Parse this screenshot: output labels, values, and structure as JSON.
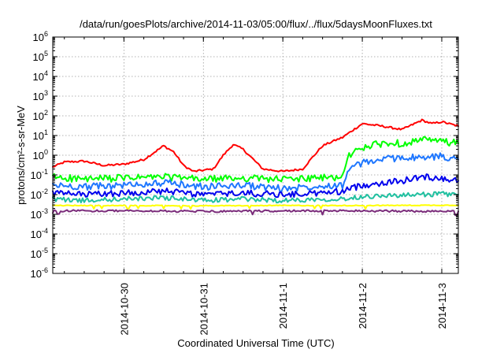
{
  "chart_data": {
    "type": "line",
    "title": "/data/run/goesPlots/archive/2014-11-03/05:00/flux/../flux/5daysMoonFluxes.txt",
    "xlabel": "Coordinated Universal Time (UTC)",
    "ylabel": "protons/cm²-s-sr-MeV",
    "yscale": "log",
    "ylim": [
      1e-06,
      1000000.0
    ],
    "y_tick_exponents": [
      -6,
      -5,
      -4,
      -3,
      -2,
      -1,
      0,
      1,
      2,
      3,
      4,
      5,
      6
    ],
    "xlim": [
      "2014-10-29 02:30",
      "2014-11-03 05:00"
    ],
    "x_ticks": [
      "2014-10-30",
      "2014-10-31",
      "2014-11-1",
      "2014-11-2",
      "2014-11-3"
    ],
    "grid": true,
    "legend": "none",
    "series": [
      {
        "color": "#ff0000",
        "x": [
          "2014-10-29 02:30",
          "2014-10-29 06:00",
          "2014-10-29 12:00",
          "2014-10-29 18:00",
          "2014-10-30 00:00",
          "2014-10-30 06:00",
          "2014-10-30 12:00",
          "2014-10-30 15:00",
          "2014-10-30 18:00",
          "2014-10-30 21:00",
          "2014-10-31 03:00",
          "2014-10-31 06:00",
          "2014-10-31 09:00",
          "2014-10-31 12:00",
          "2014-10-31 18:00",
          "2014-11-01 00:00",
          "2014-11-01 06:00",
          "2014-11-01 09:00",
          "2014-11-01 12:00",
          "2014-11-01 15:00",
          "2014-11-01 18:00",
          "2014-11-02 00:00",
          "2014-11-02 06:00",
          "2014-11-02 12:00",
          "2014-11-02 18:00",
          "2014-11-02 21:00",
          "2014-11-03 00:00",
          "2014-11-03 05:00"
        ],
        "values": [
          0.25,
          0.45,
          0.5,
          0.3,
          0.35,
          0.6,
          3.0,
          1.5,
          0.3,
          0.15,
          0.2,
          1.0,
          3.5,
          2.0,
          0.2,
          0.15,
          0.2,
          0.8,
          3.0,
          5.0,
          8.0,
          40,
          30,
          20,
          60,
          40,
          50,
          30
        ]
      },
      {
        "color": "#00ff00",
        "x": [
          "2014-10-29 02:30",
          "2014-10-29 12:00",
          "2014-10-30 00:00",
          "2014-10-30 12:00",
          "2014-10-31 00:00",
          "2014-10-31 12:00",
          "2014-11-01 00:00",
          "2014-11-01 12:00",
          "2014-11-01 18:00",
          "2014-11-01 20:00",
          "2014-11-02 00:00",
          "2014-11-02 06:00",
          "2014-11-02 12:00",
          "2014-11-02 18:00",
          "2014-11-03 00:00",
          "2014-11-03 05:00"
        ],
        "values": [
          0.08,
          0.06,
          0.07,
          0.08,
          0.06,
          0.07,
          0.06,
          0.07,
          0.08,
          1.0,
          2.5,
          4.0,
          4.0,
          6.0,
          5.0,
          4.0
        ]
      },
      {
        "color": "#1f77ff",
        "x": [
          "2014-10-29 02:30",
          "2014-10-29 12:00",
          "2014-10-30 00:00",
          "2014-10-30 12:00",
          "2014-10-31 00:00",
          "2014-10-31 12:00",
          "2014-11-01 00:00",
          "2014-11-01 12:00",
          "2014-11-01 18:00",
          "2014-11-01 20:00",
          "2014-11-02 00:00",
          "2014-11-02 06:00",
          "2014-11-02 12:00",
          "2014-11-02 18:00",
          "2014-11-03 00:00",
          "2014-11-03 05:00"
        ],
        "values": [
          0.03,
          0.025,
          0.03,
          0.04,
          0.025,
          0.03,
          0.02,
          0.03,
          0.03,
          0.2,
          0.4,
          0.6,
          0.8,
          0.7,
          0.9,
          0.6
        ]
      },
      {
        "color": "#0000ee",
        "x": [
          "2014-10-29 02:30",
          "2014-10-29 12:00",
          "2014-10-30 00:00",
          "2014-10-30 12:00",
          "2014-10-31 00:00",
          "2014-10-31 12:00",
          "2014-11-01 00:00",
          "2014-11-01 12:00",
          "2014-11-01 18:00",
          "2014-11-02 00:00",
          "2014-11-02 06:00",
          "2014-11-02 12:00",
          "2014-11-02 18:00",
          "2014-11-03 00:00",
          "2014-11-03 05:00"
        ],
        "values": [
          0.012,
          0.01,
          0.012,
          0.015,
          0.01,
          0.012,
          0.01,
          0.012,
          0.015,
          0.03,
          0.04,
          0.05,
          0.08,
          0.07,
          0.05
        ]
      },
      {
        "color": "#20c0a0",
        "x": [
          "2014-10-29 02:30",
          "2014-10-29 12:00",
          "2014-10-30 00:00",
          "2014-10-30 12:00",
          "2014-10-31 00:00",
          "2014-10-31 12:00",
          "2014-11-01 00:00",
          "2014-11-01 12:00",
          "2014-11-01 18:00",
          "2014-11-02 00:00",
          "2014-11-02 06:00",
          "2014-11-02 12:00",
          "2014-11-02 18:00",
          "2014-11-03 00:00",
          "2014-11-03 05:00"
        ],
        "values": [
          0.006,
          0.005,
          0.006,
          0.007,
          0.005,
          0.006,
          0.005,
          0.006,
          0.006,
          0.008,
          0.009,
          0.009,
          0.01,
          0.011,
          0.01
        ]
      },
      {
        "color": "#ffff00",
        "x": [
          "2014-10-29 02:30",
          "2014-10-30 00:00",
          "2014-10-31 00:00",
          "2014-11-01 00:00",
          "2014-11-02 00:00",
          "2014-11-03 00:00",
          "2014-11-03 05:00"
        ],
        "values": [
          0.0028,
          0.0028,
          0.0027,
          0.0028,
          0.0028,
          0.0029,
          0.0029
        ]
      },
      {
        "color": "#7b2d7b",
        "x": [
          "2014-10-29 02:30",
          "2014-10-30 00:00",
          "2014-10-31 00:00",
          "2014-11-01 00:00",
          "2014-11-02 00:00",
          "2014-11-03 00:00",
          "2014-11-03 05:00"
        ],
        "values": [
          0.0015,
          0.0015,
          0.0014,
          0.0015,
          0.0015,
          0.0014,
          0.0014
        ]
      }
    ]
  }
}
